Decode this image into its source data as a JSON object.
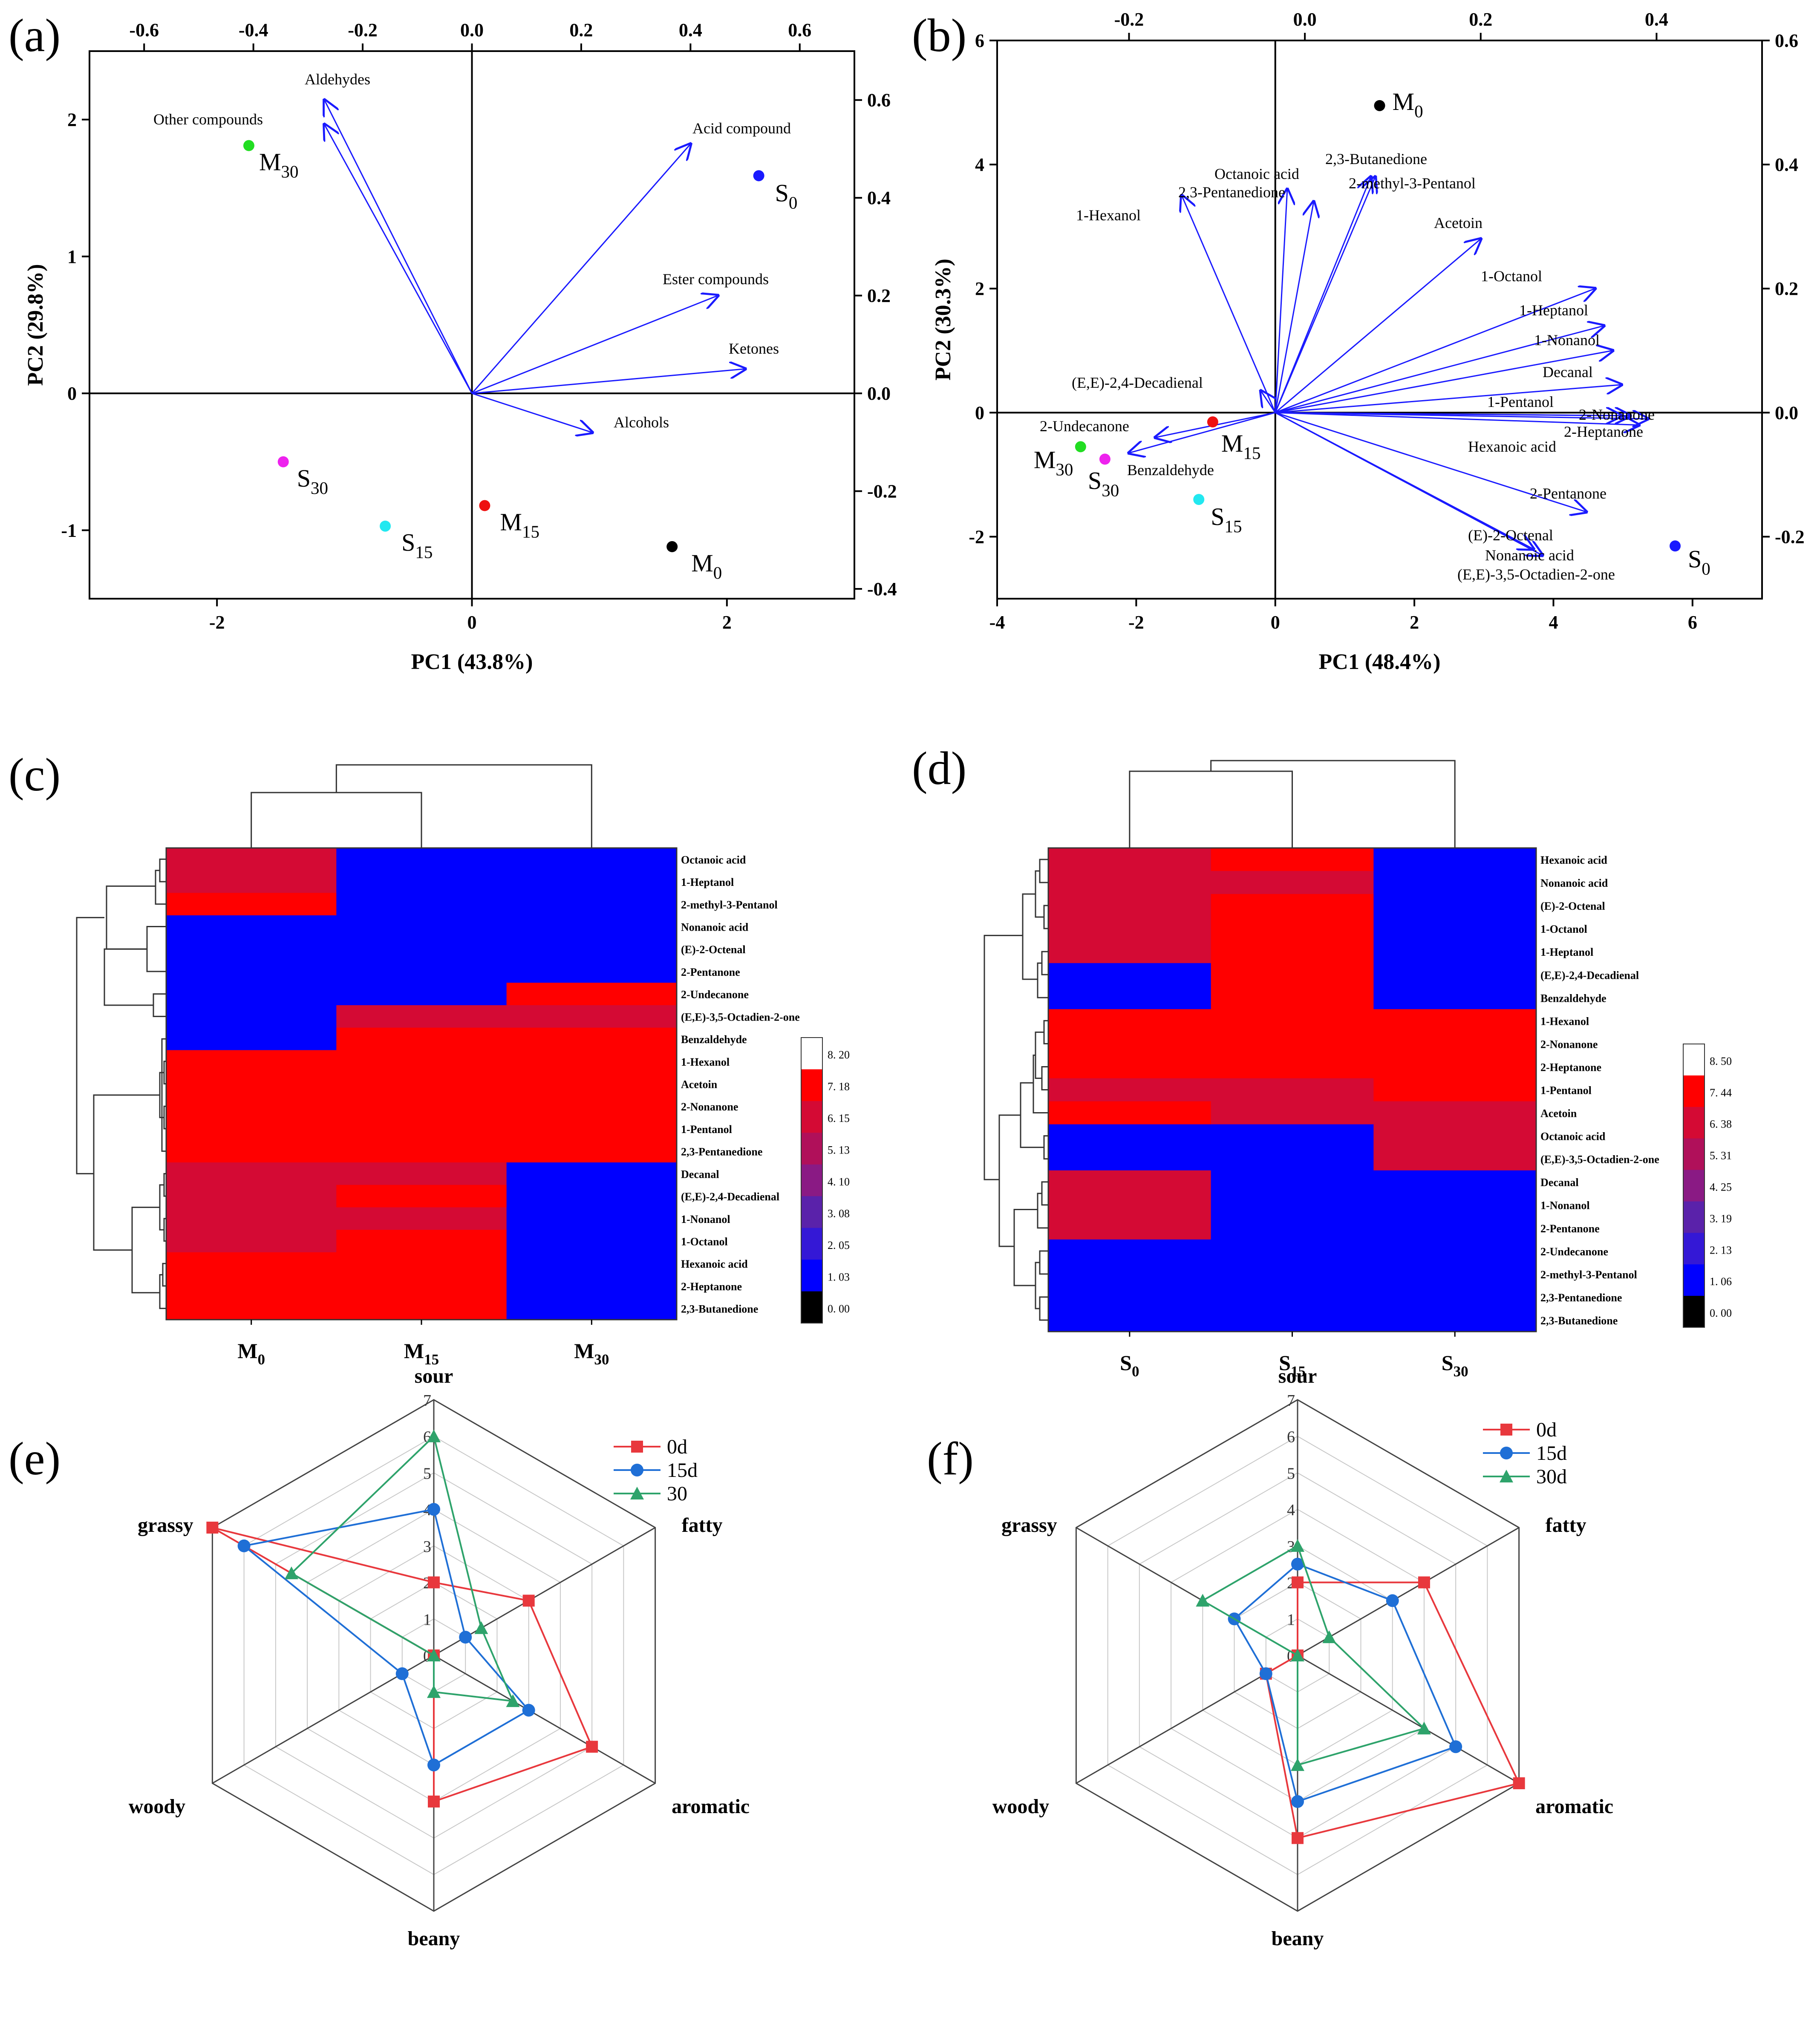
{
  "panels": {
    "a": "(a)",
    "b": "(b)",
    "c": "(c)",
    "d": "(d)",
    "e": "(e)",
    "f": "(f)"
  },
  "colors": {
    "arrow": "#1a1aff",
    "heat_red": "#ff0000",
    "heat_crimson": "#d40a34",
    "heat_blue": "#0000ff",
    "radar_0d": "#e8383d",
    "radar_15d": "#1f6fd6",
    "radar_30d": "#2ea36b"
  },
  "chart_data": [
    {
      "id": "a",
      "type": "scatter",
      "subtype": "biplot",
      "xlabel": "PC1 (43.8%)",
      "ylabel": "PC2 (29.8%)",
      "xlim": [
        -3,
        3
      ],
      "ylim": [
        -1.5,
        2.5
      ],
      "loading_lim_x": [
        -0.7,
        0.7
      ],
      "loading_lim_y": [
        -0.42,
        0.7
      ],
      "xticks": [
        -2,
        0,
        2
      ],
      "yticks": [
        -1,
        0,
        1,
        2
      ],
      "top_ticks": [
        -0.6,
        -0.4,
        -0.2,
        0.0,
        0.2,
        0.4,
        0.6
      ],
      "right_ticks": [
        -0.4,
        -0.2,
        0.0,
        0.2,
        0.4,
        0.6
      ],
      "points": [
        {
          "label": "M",
          "sub": "30",
          "x": -1.75,
          "y": 1.81,
          "color": "#22dd22"
        },
        {
          "label": "S",
          "sub": "0",
          "x": 2.25,
          "y": 1.59,
          "color": "#1a1aff"
        },
        {
          "label": "S",
          "sub": "30",
          "x": -1.48,
          "y": -0.5,
          "color": "#ee22ee"
        },
        {
          "label": "S",
          "sub": "15",
          "x": -0.68,
          "y": -0.97,
          "color": "#22e8f0"
        },
        {
          "label": "M",
          "sub": "15",
          "x": 0.1,
          "y": -0.82,
          "color": "#ee1111"
        },
        {
          "label": "M",
          "sub": "0",
          "x": 1.57,
          "y": -1.12,
          "color": "#000000"
        }
      ],
      "arrows": [
        {
          "label": "Aldehydes",
          "x": -0.27,
          "y": 0.6
        },
        {
          "label": "Other compounds",
          "x": -0.27,
          "y": 0.55
        },
        {
          "label": "Acid compound",
          "x": 0.4,
          "y": 0.51
        },
        {
          "label": "Ester compounds",
          "x": 0.45,
          "y": 0.2
        },
        {
          "label": "Ketones",
          "x": 0.5,
          "y": 0.05
        },
        {
          "label": "Alcohols",
          "x": 0.22,
          "y": -0.08
        }
      ]
    },
    {
      "id": "b",
      "type": "scatter",
      "subtype": "biplot",
      "xlabel": "PC1 (48.4%)",
      "ylabel": "PC2 (30.3%)",
      "xlim": [
        -4,
        7
      ],
      "ylim": [
        -3,
        6
      ],
      "loading_lim_x": [
        -0.35,
        0.52
      ],
      "loading_lim_y": [
        -0.3,
        0.6
      ],
      "xticks": [
        -4,
        -2,
        0,
        2,
        4,
        6
      ],
      "yticks": [
        -2,
        0,
        2,
        4,
        6
      ],
      "top_ticks": [
        -0.2,
        0.0,
        0.2,
        0.4
      ],
      "right_ticks": [
        -0.2,
        0.0,
        0.2,
        0.4,
        0.6
      ],
      "points": [
        {
          "label": "M",
          "sub": "0",
          "x": 1.5,
          "y": 4.95,
          "color": "#000000"
        },
        {
          "label": "M",
          "sub": "15",
          "x": -0.9,
          "y": -0.15,
          "color": "#ee1111"
        },
        {
          "label": "M",
          "sub": "30",
          "x": -2.8,
          "y": -0.55,
          "color": "#22dd22"
        },
        {
          "label": "S",
          "sub": "30",
          "x": -2.45,
          "y": -0.75,
          "color": "#ee22ee"
        },
        {
          "label": "S",
          "sub": "15",
          "x": -1.1,
          "y": -1.4,
          "color": "#22e8f0"
        },
        {
          "label": "S",
          "sub": "0",
          "x": 5.75,
          "y": -2.15,
          "color": "#1a1aff"
        }
      ],
      "arrows": [
        {
          "label": "1-Hexanol",
          "x": -0.14,
          "y": 0.35
        },
        {
          "label": "2,3-Pentanedione",
          "x": -0.02,
          "y": 0.36
        },
        {
          "label": "Octanoic acid",
          "x": 0.01,
          "y": 0.34
        },
        {
          "label": "2,3-Butanedione",
          "x": 0.08,
          "y": 0.38
        },
        {
          "label": "2-methyl-3-Pentanol",
          "x": 0.075,
          "y": 0.38
        },
        {
          "label": "Acetoin",
          "x": 0.2,
          "y": 0.28
        },
        {
          "label": "1-Octanol",
          "x": 0.33,
          "y": 0.2
        },
        {
          "label": "1-Heptanol",
          "x": 0.34,
          "y": 0.14
        },
        {
          "label": "1-Nonanol",
          "x": 0.35,
          "y": 0.1
        },
        {
          "label": "Decanal",
          "x": 0.36,
          "y": 0.045
        },
        {
          "label": "1-Pentanol",
          "x": 0.37,
          "y": -0.005
        },
        {
          "label": "2-Nonanone",
          "x": 0.39,
          "y": -0.01
        },
        {
          "label": "2-Heptanone",
          "x": 0.38,
          "y": -0.02
        },
        {
          "label": "Hexanoic acid",
          "x": 0.36,
          "y": -0.005
        },
        {
          "label": "2-Pentanone",
          "x": 0.32,
          "y": -0.16
        },
        {
          "label": "(E)-2-Octenal",
          "x": 0.26,
          "y": -0.22
        },
        {
          "label": "Nonanoic acid",
          "x": 0.27,
          "y": -0.23
        },
        {
          "label": "(E,E)-3,5-Octadien-2-one",
          "x": 0.27,
          "y": -0.23
        },
        {
          "label": "(E,E)-2,4-Decadienal",
          "x": -0.05,
          "y": 0.035
        },
        {
          "label": "2-Undecanone",
          "x": -0.17,
          "y": -0.04
        },
        {
          "label": "Benzaldehyde",
          "x": -0.2,
          "y": -0.065
        }
      ]
    },
    {
      "id": "c",
      "type": "heatmap",
      "columns": [
        {
          "label": "M",
          "sub": "0"
        },
        {
          "label": "M",
          "sub": "15"
        },
        {
          "label": "M",
          "sub": "30"
        }
      ],
      "rows": [
        "Octanoic acid",
        "1-Heptanol",
        "2-methyl-3-Pentanol",
        "Nonanoic acid",
        "(E)-2-Octenal",
        "2-Pentanone",
        "2-Undecanone",
        "(E,E)-3,5-Octadien-2-one",
        "Benzaldehyde",
        "1-Hexanol",
        "Acetoin",
        "2-Nonanone",
        "1-Pentanol",
        "2,3-Pentanedione",
        "Decanal",
        "(E,E)-2,4-Decadienal",
        "1-Nonanol",
        "1-Octanol",
        "Hexanoic acid",
        "2-Heptanone",
        "2,3-Butanedione"
      ],
      "values": [
        [
          6.6,
          0.6,
          0.6
        ],
        [
          6.6,
          0.6,
          0.6
        ],
        [
          8.0,
          0.6,
          0.6
        ],
        [
          0.6,
          0.6,
          0.6
        ],
        [
          0.6,
          0.6,
          0.6
        ],
        [
          0.6,
          0.6,
          0.6
        ],
        [
          0.6,
          0.6,
          8.0
        ],
        [
          0.6,
          6.6,
          6.6
        ],
        [
          0.6,
          8.0,
          8.0
        ],
        [
          8.0,
          8.0,
          8.0
        ],
        [
          8.0,
          8.0,
          8.0
        ],
        [
          8.0,
          8.0,
          8.0
        ],
        [
          8.0,
          8.0,
          8.0
        ],
        [
          8.0,
          8.0,
          8.0
        ],
        [
          6.6,
          6.6,
          0.6
        ],
        [
          6.6,
          8.0,
          0.6
        ],
        [
          6.6,
          6.6,
          0.6
        ],
        [
          6.6,
          8.0,
          0.6
        ],
        [
          8.0,
          8.0,
          0.6
        ],
        [
          8.0,
          8.0,
          0.6
        ],
        [
          8.0,
          8.0,
          0.6
        ]
      ],
      "scale_ticks": [
        "8. 20",
        "7. 18",
        "6. 15",
        "5. 13",
        "4. 10",
        "3. 08",
        "2. 05",
        "1. 03",
        "0. 00"
      ]
    },
    {
      "id": "d",
      "type": "heatmap",
      "columns": [
        {
          "label": "S",
          "sub": "0"
        },
        {
          "label": "S",
          "sub": "15"
        },
        {
          "label": "S",
          "sub": "30"
        }
      ],
      "rows": [
        "Hexanoic acid",
        "Nonanoic acid",
        "(E)-2-Octenal",
        "1-Octanol",
        "1-Heptanol",
        "(E,E)-2,4-Decadienal",
        "Benzaldehyde",
        "1-Hexanol",
        "2-Nonanone",
        "2-Heptanone",
        "1-Pentanol",
        "Acetoin",
        "Octanoic acid",
        "(E,E)-3,5-Octadien-2-one",
        "Decanal",
        "1-Nonanol",
        "2-Pentanone",
        "2-Undecanone",
        "2-methyl-3-Pentanol",
        "2,3-Pentanedione",
        "2,3-Butanedione"
      ],
      "values": [
        [
          6.6,
          8.0,
          0.6
        ],
        [
          6.6,
          6.6,
          0.6
        ],
        [
          6.6,
          8.0,
          0.6
        ],
        [
          6.6,
          8.0,
          0.6
        ],
        [
          6.6,
          8.0,
          0.6
        ],
        [
          0.6,
          8.0,
          0.6
        ],
        [
          0.6,
          8.0,
          0.6
        ],
        [
          8.0,
          8.0,
          8.0
        ],
        [
          8.0,
          8.0,
          8.0
        ],
        [
          8.0,
          8.0,
          8.0
        ],
        [
          6.6,
          6.6,
          8.0
        ],
        [
          8.0,
          6.6,
          6.6
        ],
        [
          0.6,
          0.6,
          6.6
        ],
        [
          0.6,
          0.6,
          6.6
        ],
        [
          6.6,
          0.6,
          0.6
        ],
        [
          6.6,
          0.6,
          0.6
        ],
        [
          6.6,
          0.6,
          0.6
        ],
        [
          0.6,
          0.6,
          0.6
        ],
        [
          0.6,
          0.6,
          0.6
        ],
        [
          0.6,
          0.6,
          0.6
        ],
        [
          0.6,
          0.6,
          0.6
        ]
      ],
      "scale_ticks": [
        "8. 50",
        "7. 44",
        "6. 38",
        "5. 31",
        "4. 25",
        "3. 19",
        "2. 13",
        "1. 06",
        "0. 00"
      ]
    },
    {
      "id": "e",
      "type": "radar",
      "axes": [
        "sour",
        "fatty",
        "aromatic",
        "beany",
        "woody",
        "grassy"
      ],
      "rmax": 7,
      "rticks": [
        "0",
        "1",
        "2",
        "3",
        "4",
        "5",
        "6",
        "7"
      ],
      "series": [
        {
          "name": "0d",
          "marker": "square",
          "color": "#e8383d",
          "values": [
            2,
            3,
            5,
            4,
            0,
            7
          ]
        },
        {
          "name": "15d",
          "marker": "circle",
          "color": "#1f6fd6",
          "values": [
            4,
            1,
            3,
            3,
            1,
            6
          ]
        },
        {
          "name": "30",
          "marker": "triangle",
          "color": "#2ea36b",
          "values": [
            6,
            1.5,
            2.5,
            1,
            0,
            4.5
          ]
        }
      ]
    },
    {
      "id": "f",
      "type": "radar",
      "axes": [
        "sour",
        "fatty",
        "aromatic",
        "beany",
        "woody",
        "grassy"
      ],
      "rmax": 7,
      "rticks": [
        "0",
        "1",
        "2",
        "3",
        "4",
        "5",
        "6",
        "7"
      ],
      "series": [
        {
          "name": "0d",
          "marker": "square",
          "color": "#e8383d",
          "values": [
            2,
            4,
            7,
            5,
            1,
            0
          ]
        },
        {
          "name": "15d",
          "marker": "circle",
          "color": "#1f6fd6",
          "values": [
            2.5,
            3,
            5,
            4,
            1,
            2
          ]
        },
        {
          "name": "30d",
          "marker": "triangle",
          "color": "#2ea36b",
          "values": [
            3,
            1,
            4,
            3,
            0,
            3
          ]
        }
      ]
    }
  ]
}
